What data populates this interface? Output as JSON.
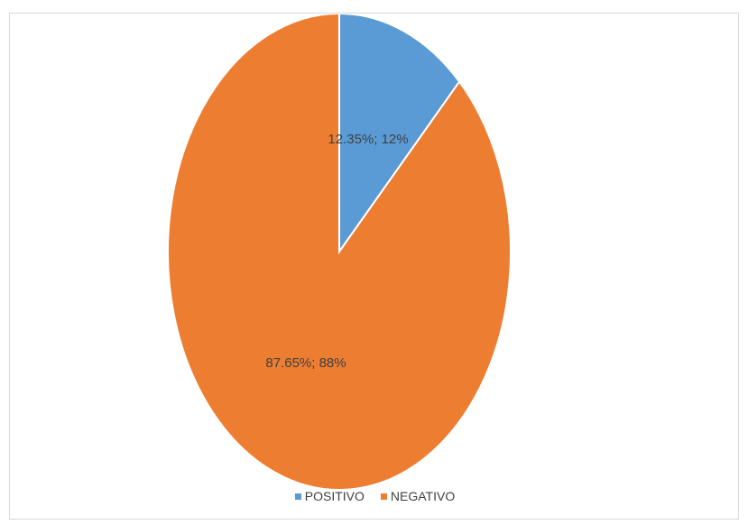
{
  "chart_data": {
    "type": "pie",
    "categories": [
      "POSITIVO",
      "NEGATIVO"
    ],
    "values": [
      12.35,
      87.65
    ],
    "labels": [
      "12.35%; 12%",
      "87.65%; 88%"
    ],
    "colors": [
      "#5b9bd5",
      "#ed7d31"
    ],
    "start_angle": "12 o'clock",
    "direction": "clockwise",
    "legend_position": "bottom"
  }
}
